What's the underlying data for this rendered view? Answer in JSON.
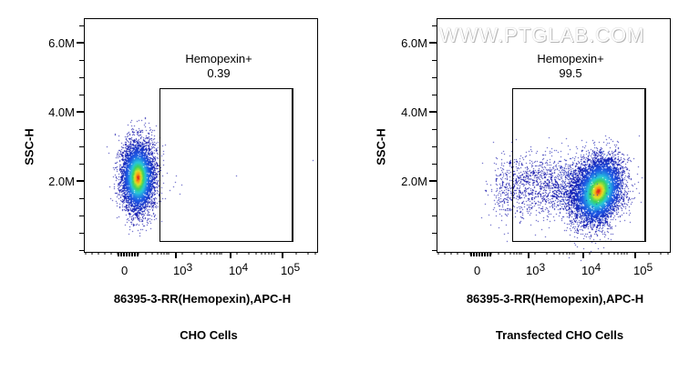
{
  "chart_data": [
    {
      "type": "scatter",
      "title": "CHO Cells",
      "xlabel": "86395-3-RR(Hemopexin),APC-H",
      "ylabel": "SSC-H",
      "x_scale": "biexponential",
      "x_tick_labels": [
        "0",
        "10^3",
        "10^4",
        "10^5"
      ],
      "y_tick_labels": [
        "2.0M",
        "4.0M",
        "6.0M"
      ],
      "y_ticks": [
        2000000,
        4000000,
        6000000
      ],
      "ylim": [
        0,
        6700000
      ],
      "gate": {
        "name": "Hemopexin+",
        "percent": 0.39,
        "x_range": [
          "~500",
          "~1.2x10^5"
        ],
        "y_range": [
          300000,
          4700000
        ]
      },
      "population": {
        "center_x": "~150 (near 0)",
        "center_y": 1900000,
        "y_spread": [
          900000,
          3000000
        ],
        "description": "single dense cluster left of gate, APC negative"
      },
      "grid": false,
      "legend": null
    },
    {
      "type": "scatter",
      "title": "Transfected CHO Cells",
      "xlabel": "86395-3-RR(Hemopexin),APC-H",
      "ylabel": "SSC-H",
      "x_scale": "biexponential",
      "x_tick_labels": [
        "0",
        "10^3",
        "10^4",
        "10^5"
      ],
      "y_tick_labels": [
        "2.0M",
        "4.0M",
        "6.0M"
      ],
      "y_ticks": [
        2000000,
        4000000,
        6000000
      ],
      "ylim": [
        0,
        6700000
      ],
      "gate": {
        "name": "Hemopexin+",
        "percent": 99.5,
        "x_range": [
          "~500",
          "~1.2x10^5"
        ],
        "y_range": [
          300000,
          4700000
        ]
      },
      "population": {
        "center_x": "~1.5x10^4",
        "center_y": 1600000,
        "y_spread": [
          800000,
          3100000
        ],
        "description": "dense cluster inside gate with tail toward lower APC"
      },
      "grid": false,
      "legend": null
    }
  ],
  "panels": [
    {
      "caption": "CHO Cells",
      "gate_name": "Hemopexin+",
      "gate_value": "0.39",
      "x_title": "86395-3-RR(Hemopexin),APC-H",
      "y_title": "SSC-H",
      "y_labels": [
        "6.0M",
        "4.0M",
        "2.0M"
      ],
      "x_labels": {
        "zero": "0",
        "e3_base": "10",
        "e3_exp": "3",
        "e4_base": "10",
        "e4_exp": "4",
        "e5_base": "10",
        "e5_exp": "5"
      }
    },
    {
      "caption": "Transfected CHO Cells",
      "gate_name": "Hemopexin+",
      "gate_value": "99.5",
      "x_title": "86395-3-RR(Hemopexin),APC-H",
      "y_title": "SSC-H",
      "y_labels": [
        "6.0M",
        "4.0M",
        "2.0M"
      ],
      "x_labels": {
        "zero": "0",
        "e3_base": "10",
        "e3_exp": "3",
        "e4_base": "10",
        "e4_exp": "4",
        "e5_base": "10",
        "e5_exp": "5"
      },
      "watermark": "WWW.PTGLAB.COM"
    }
  ]
}
